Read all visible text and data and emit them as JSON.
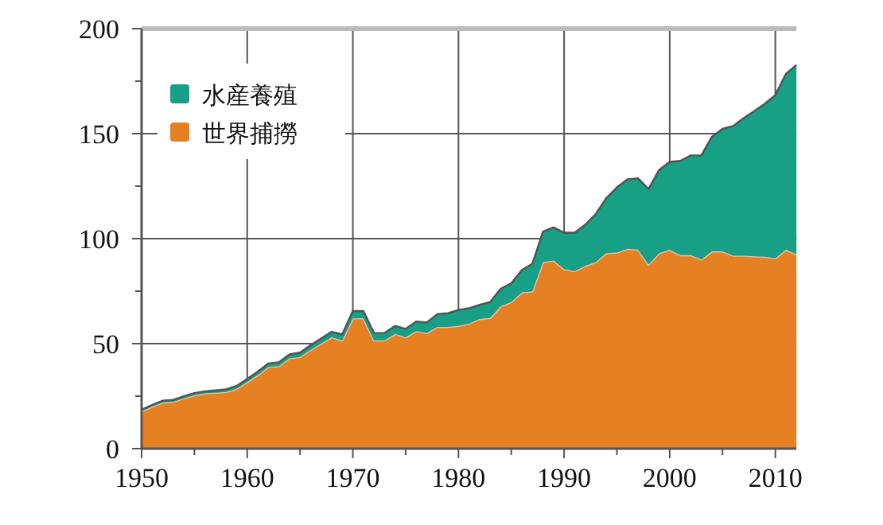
{
  "chart_data": {
    "type": "area",
    "stacked": true,
    "x": [
      1950,
      1951,
      1952,
      1953,
      1954,
      1955,
      1956,
      1957,
      1958,
      1959,
      1960,
      1961,
      1962,
      1963,
      1964,
      1965,
      1966,
      1967,
      1968,
      1969,
      1970,
      1971,
      1972,
      1973,
      1974,
      1975,
      1976,
      1977,
      1978,
      1979,
      1980,
      1981,
      1982,
      1983,
      1984,
      1985,
      1986,
      1987,
      1988,
      1989,
      1990,
      1991,
      1992,
      1993,
      1994,
      1995,
      1996,
      1997,
      1998,
      1999,
      2000,
      2001,
      2002,
      2003,
      2004,
      2005,
      2006,
      2007,
      2008,
      2009,
      2010,
      2011,
      2012
    ],
    "series": [
      {
        "name": "世界捕撈",
        "color": "#e68123",
        "values": [
          17.8,
          20,
          22,
          22.3,
          24,
          25.4,
          26.3,
          26.6,
          27,
          28.5,
          31.7,
          35,
          38.8,
          39.3,
          43,
          43.7,
          47,
          50,
          53,
          51.5,
          62,
          62,
          51.5,
          51.5,
          54.6,
          53,
          56,
          55,
          58,
          58,
          58.4,
          59.6,
          61.7,
          62.2,
          67.8,
          69.8,
          74.4,
          74.9,
          88.8,
          89.6,
          85.5,
          84.5,
          87,
          88.8,
          93.1,
          93.4,
          95.2,
          94.7,
          87.6,
          93.1,
          94.7,
          92.1,
          92.1,
          90.1,
          93.9,
          93.9,
          91.9,
          91.9,
          91.6,
          91.4,
          90.6,
          94.7,
          92.6
        ]
      },
      {
        "name": "水産養殖",
        "color": "#17a085",
        "values": [
          0.7,
          0.8,
          0.8,
          0.9,
          0.9,
          1,
          1,
          1.1,
          1.2,
          1.3,
          1.5,
          1.6,
          1.7,
          1.8,
          1.9,
          2,
          2.2,
          2.4,
          2.6,
          2.9,
          3.5,
          3.5,
          3.5,
          3.6,
          3.8,
          4,
          4.5,
          5,
          6,
          6.5,
          7.6,
          7.2,
          6.8,
          7.6,
          8.3,
          8.9,
          10.6,
          13.1,
          14.5,
          15.7,
          17.3,
          18.3,
          19.6,
          22.9,
          26.2,
          31,
          33,
          34,
          36,
          39.6,
          41.8,
          44.9,
          47.5,
          49.5,
          54.6,
          58.4,
          61.7,
          65.5,
          69.1,
          72.8,
          77.7,
          83.7,
          90.1
        ]
      }
    ],
    "xlim": [
      1950,
      2012
    ],
    "xticks": [
      1950,
      1960,
      1970,
      1980,
      1990,
      2000,
      2010
    ],
    "ylim": [
      0,
      200
    ],
    "yticks": [
      0,
      50,
      100,
      150,
      200
    ],
    "grid": true,
    "legend": "top left"
  }
}
